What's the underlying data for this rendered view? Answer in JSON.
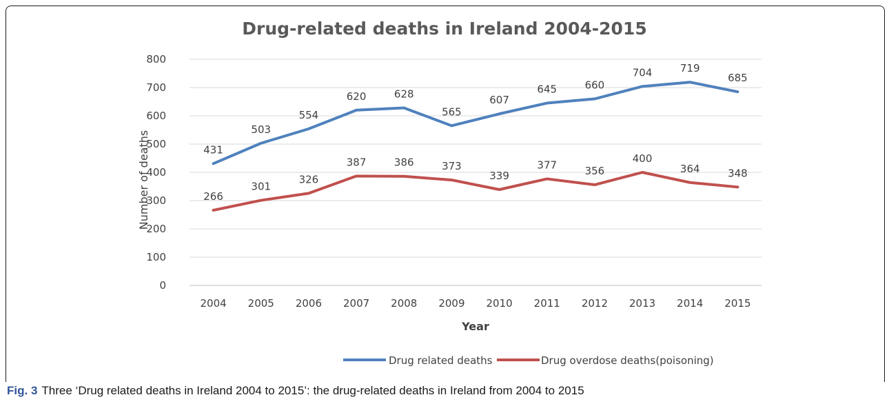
{
  "caption": {
    "fig_label": "Fig. 3",
    "text": "Three ‘Drug related deaths in Ireland 2004 to 2015’: the drug-related deaths in Ireland from 2004 to 2015"
  },
  "chart_data": {
    "type": "line",
    "title": "Drug-related deaths in Ireland 2004-2015",
    "xlabel": "Year",
    "ylabel": "Number of deaths",
    "x": [
      "2004",
      "2005",
      "2006",
      "2007",
      "2008",
      "2009",
      "2010",
      "2011",
      "2012",
      "2013",
      "2014",
      "2015"
    ],
    "ylim": [
      0,
      800
    ],
    "yticks": [
      0,
      100,
      200,
      300,
      400,
      500,
      600,
      700,
      800
    ],
    "grid": true,
    "legend_position": "bottom",
    "series": [
      {
        "name": "Drug related deaths",
        "color": "#4f81bd",
        "values": [
          431,
          503,
          554,
          620,
          628,
          565,
          607,
          645,
          660,
          704,
          719,
          685
        ]
      },
      {
        "name": "Drug overdose deaths(poisoning)",
        "color": "#c0504d",
        "values": [
          266,
          301,
          326,
          387,
          386,
          373,
          339,
          377,
          356,
          400,
          364,
          348
        ]
      }
    ]
  }
}
